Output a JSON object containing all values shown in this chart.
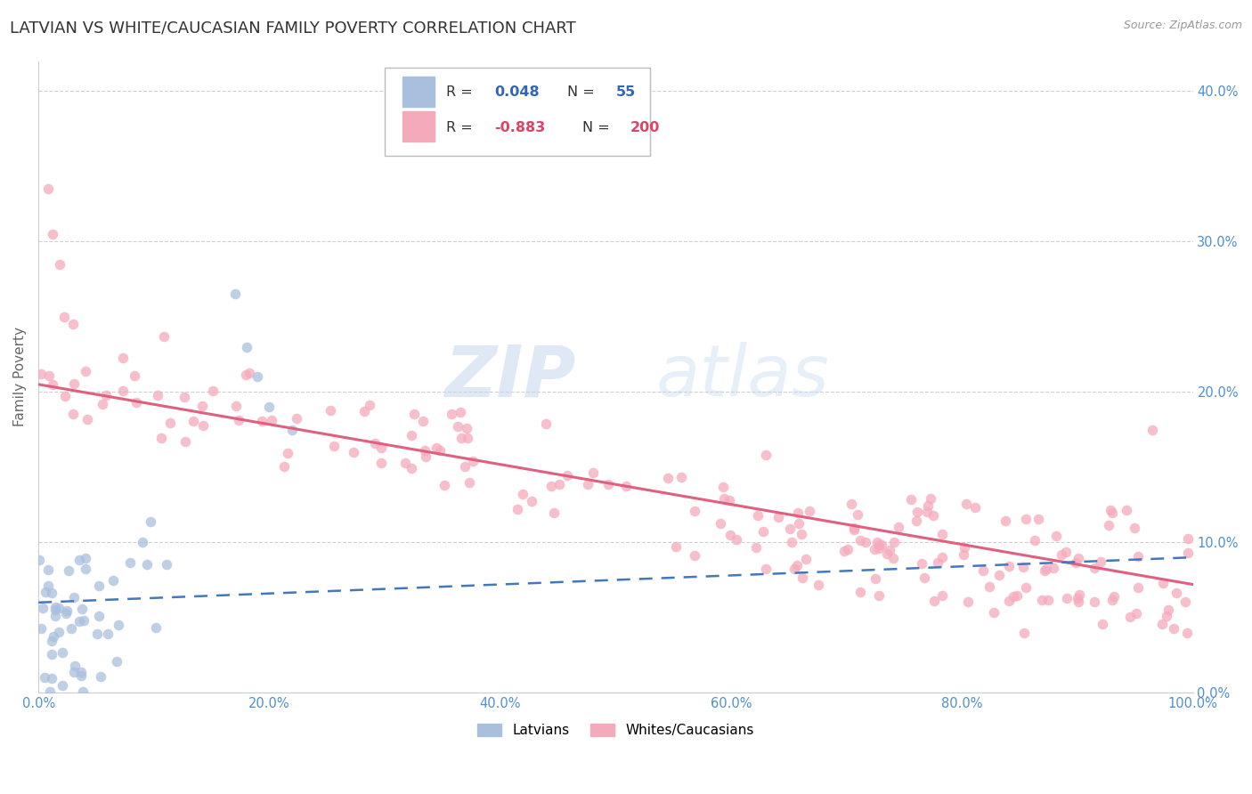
{
  "title": "LATVIAN VS WHITE/CAUCASIAN FAMILY POVERTY CORRELATION CHART",
  "source": "Source: ZipAtlas.com",
  "ylabel": "Family Poverty",
  "watermark_zip": "ZIP",
  "watermark_atlas": "atlas",
  "legend_entries": [
    {
      "label": "Latvians",
      "patch_color": "#aabfde",
      "R_text": "R = ",
      "R_val": "0.048",
      "N_text": "N = ",
      "N_val": "55"
    },
    {
      "label": "Whites/Caucasians",
      "patch_color": "#f5aabb",
      "R_text": "R = ",
      "R_val": "-0.883",
      "N_text": "N = ",
      "N_val": "200"
    }
  ],
  "xlim": [
    0.0,
    1.0
  ],
  "ylim": [
    0.0,
    0.42
  ],
  "yticks": [
    0.0,
    0.1,
    0.2,
    0.3,
    0.4
  ],
  "xticks": [
    0.0,
    0.2,
    0.4,
    0.6,
    0.8,
    1.0
  ],
  "xtick_labels": [
    "0.0%",
    "20.0%",
    "40.0%",
    "60.0%",
    "80.0%",
    "100.0%"
  ],
  "ytick_labels": [
    "0.0%",
    "10.0%",
    "20.0%",
    "30.0%",
    "40.0%"
  ],
  "title_fontsize": 13,
  "source_fontsize": 9,
  "tick_color": "#5090cc",
  "latvian_dot_color": "#a8c0de",
  "caucasian_dot_color": "#f5aabb",
  "latvian_line_color": "#4477bb",
  "caucasian_line_color": "#e06080",
  "scatter_size": 70,
  "scatter_alpha": 0.75,
  "lat_line_start_y": 0.06,
  "lat_line_end_y": 0.09,
  "cau_line_start_y": 0.205,
  "cau_line_end_y": 0.072
}
